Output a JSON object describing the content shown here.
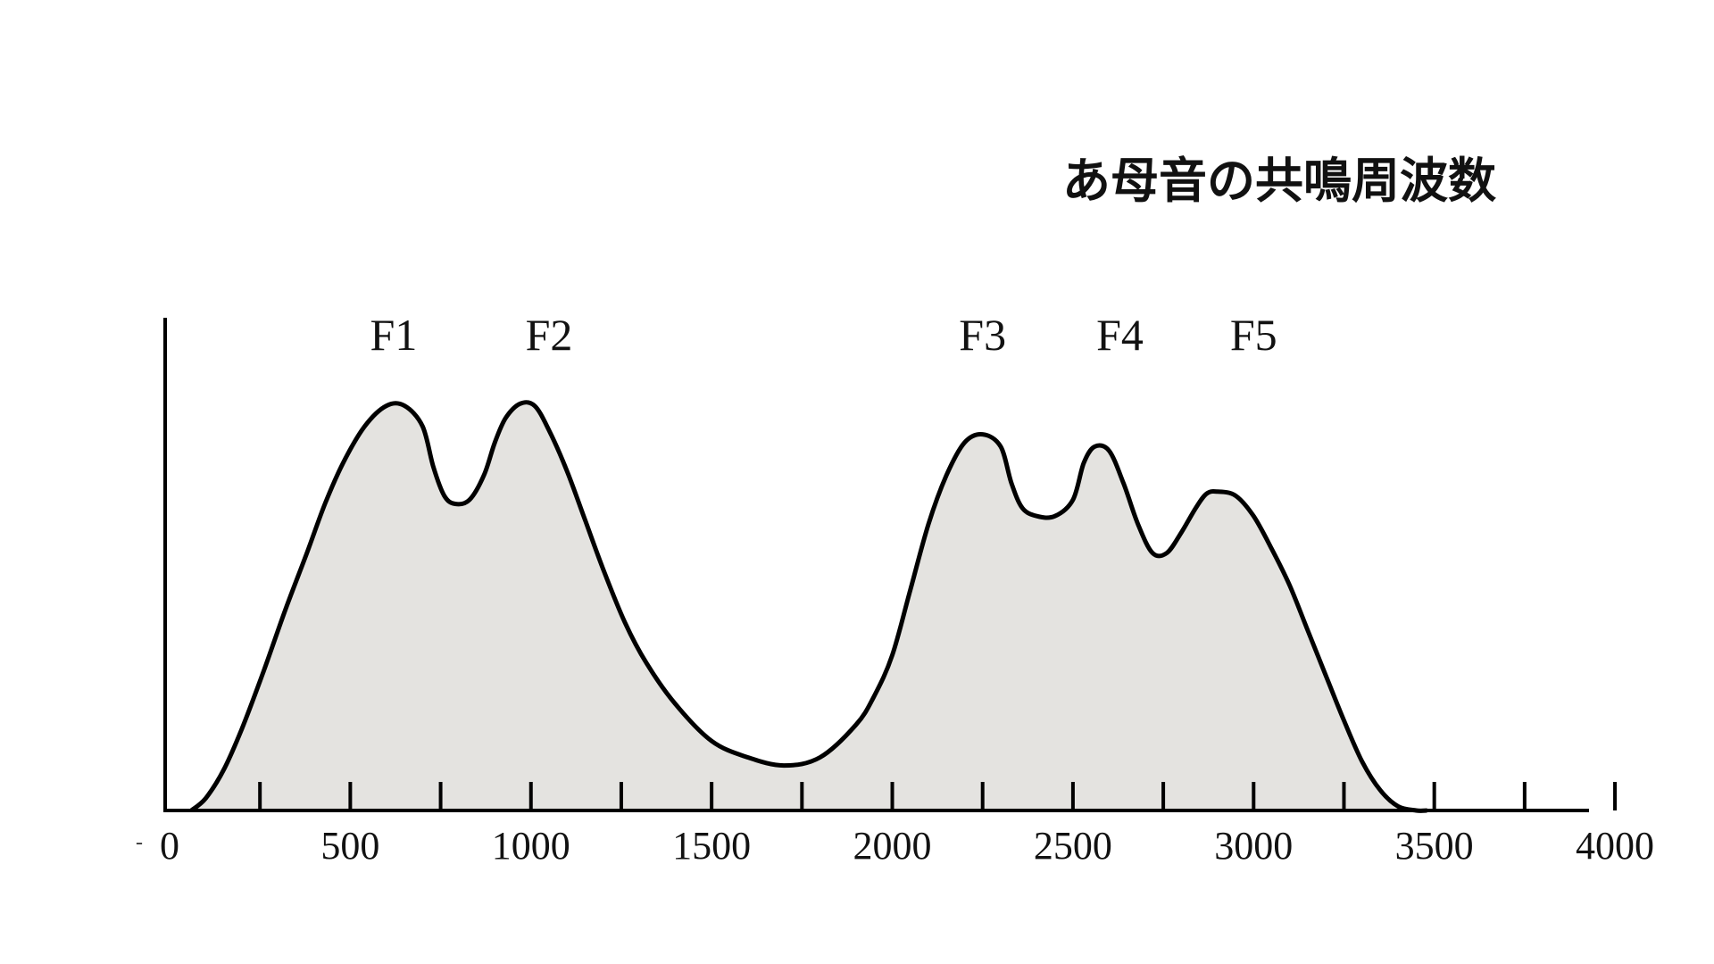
{
  "title": "あ母音の共鳴周波数",
  "chart_data": {
    "type": "area",
    "title": "あ母音の共鳴周波数",
    "xlabel": "",
    "ylabel": "",
    "xlim": [
      0,
      4200
    ],
    "ylim": [
      0,
      100
    ],
    "x_ticks_major": [
      0,
      500,
      1000,
      1500,
      2000,
      2500,
      3000,
      3500,
      4000
    ],
    "x_ticks_minor": [
      250,
      750,
      1250,
      1750,
      2250,
      2750,
      3250,
      3750
    ],
    "y_ticks": [],
    "grid": false,
    "fill_color": "#e4e3e0",
    "line_color": "#000000",
    "curve": {
      "x": [
        60,
        100,
        150,
        200,
        260,
        320,
        380,
        430,
        480,
        540,
        600,
        650,
        700,
        730,
        760,
        790,
        830,
        870,
        900,
        930,
        970,
        1010,
        1050,
        1100,
        1150,
        1200,
        1260,
        1320,
        1400,
        1500,
        1600,
        1700,
        1800,
        1900,
        1950,
        2000,
        2050,
        2100,
        2150,
        2200,
        2250,
        2300,
        2330,
        2360,
        2400,
        2450,
        2500,
        2530,
        2560,
        2600,
        2640,
        2680,
        2720,
        2760,
        2800,
        2840,
        2870,
        2900,
        2950,
        3000,
        3050,
        3100,
        3150,
        3200,
        3250,
        3300,
        3350,
        3400,
        3450,
        3480
      ],
      "y": [
        0,
        3,
        10,
        20,
        34,
        49,
        63,
        75,
        85,
        94,
        99,
        99,
        94,
        84,
        77,
        75,
        76,
        82,
        90,
        96,
        99.5,
        99,
        93,
        83,
        71,
        59,
        46,
        36,
        26,
        17,
        13,
        11,
        13,
        21,
        28,
        38,
        54,
        70,
        82,
        90,
        92,
        89,
        80,
        74,
        72,
        72,
        76,
        85,
        89,
        88,
        80,
        70,
        63,
        63,
        68,
        74,
        77.5,
        78,
        77,
        72,
        64,
        55,
        44,
        33,
        22,
        12,
        5,
        1,
        0,
        0
      ]
    },
    "formants": [
      {
        "label": "F1",
        "x": 620
      },
      {
        "label": "F2",
        "x": 1050
      },
      {
        "label": "F3",
        "x": 2250
      },
      {
        "label": "F4",
        "x": 2630
      },
      {
        "label": "F5",
        "x": 3000
      }
    ]
  }
}
